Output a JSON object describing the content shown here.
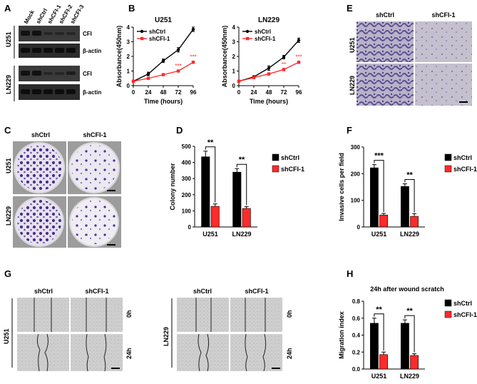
{
  "panels": {
    "A": "A",
    "B": "B",
    "C": "C",
    "D": "D",
    "E": "E",
    "F": "F",
    "G": "G",
    "H": "H"
  },
  "colors": {
    "shCtrl": "#000000",
    "shCFI": "#ff2a2a",
    "blot_bg": "#3a3a3a",
    "blot_band": "#151515",
    "dish_purple": "#5b3d9a",
    "micro_bg": "#b9b6c2"
  },
  "western_blot": {
    "lanes": [
      "Mock",
      "shCtrl",
      "shCFI-1",
      "shCFI-2",
      "shCFI-3"
    ],
    "blocks": [
      {
        "cell_line": "U251",
        "rows": [
          "CFI",
          "β-actin"
        ]
      },
      {
        "cell_line": "LN229",
        "rows": [
          "CFI",
          "β-actin"
        ]
      }
    ]
  },
  "invasion_images": {
    "cols": [
      "shCtrl",
      "shCFI-1"
    ],
    "rows": [
      "U251",
      "LN229"
    ]
  },
  "colony_images": {
    "cols": [
      "shCtrl",
      "shCFI-1"
    ],
    "rows": [
      "U251",
      "LN229"
    ]
  },
  "wound_images": {
    "left": {
      "cell_line": "U251",
      "cols": [
        "shCtrl",
        "shCFI-1"
      ],
      "times": [
        "0h",
        "24h"
      ]
    },
    "right": {
      "cell_line": "LN229",
      "cols": [
        "shCtrl",
        "shCFI-1"
      ],
      "times": [
        "0h",
        "24h"
      ]
    }
  },
  "chart_data": [
    {
      "id": "B-U251",
      "type": "line",
      "title": "U251",
      "xlabel": "Time (hours)",
      "ylabel": "Absorbance(450nm)",
      "x": [
        0,
        24,
        48,
        72,
        96
      ],
      "xlim": [
        0,
        96
      ],
      "ylim": [
        0,
        4
      ],
      "xticks": [
        "0",
        "24",
        "48",
        "72",
        "96"
      ],
      "yticks": [
        "0",
        "1",
        "2",
        "3",
        "4"
      ],
      "series": [
        {
          "name": "shCtrl",
          "values": [
            0.3,
            0.8,
            1.7,
            2.45,
            3.85
          ],
          "err": [
            0.05,
            0.12,
            0.12,
            0.15,
            0.15
          ]
        },
        {
          "name": "shCFI-1",
          "values": [
            0.3,
            0.5,
            0.75,
            1.0,
            1.6
          ],
          "err": [
            0.05,
            0.05,
            0.06,
            0.07,
            0.08
          ]
        }
      ],
      "annotations": [
        {
          "x": 72,
          "label": "***"
        },
        {
          "x": 96,
          "label": "***"
        }
      ],
      "legend": "top-left"
    },
    {
      "id": "B-LN229",
      "type": "line",
      "title": "LN229",
      "xlabel": "Time (hours)",
      "ylabel": "Absorbance(450nm)",
      "x": [
        0,
        24,
        48,
        72,
        96
      ],
      "xlim": [
        0,
        96
      ],
      "ylim": [
        0,
        4
      ],
      "xticks": [
        "0",
        "24",
        "48",
        "72",
        "96"
      ],
      "yticks": [
        "0",
        "1",
        "2",
        "3",
        "4"
      ],
      "series": [
        {
          "name": "shCtrl",
          "values": [
            0.3,
            0.6,
            1.2,
            1.95,
            3.1
          ],
          "err": [
            0.05,
            0.08,
            0.15,
            0.12,
            0.15
          ]
        },
        {
          "name": "shCFI-1",
          "values": [
            0.3,
            0.55,
            0.8,
            1.1,
            1.6
          ],
          "err": [
            0.05,
            0.05,
            0.06,
            0.08,
            0.08
          ]
        }
      ],
      "annotations": [
        {
          "x": 72,
          "label": "**"
        },
        {
          "x": 96,
          "label": "***"
        }
      ],
      "legend": "top-left"
    },
    {
      "id": "D",
      "type": "bar",
      "title": "",
      "ylabel": "Colony number",
      "categories": [
        "U251",
        "LN229"
      ],
      "ylim": [
        0,
        500
      ],
      "yticks": [
        "0",
        "100",
        "200",
        "300",
        "400",
        "500"
      ],
      "series": [
        {
          "name": "shCtrl",
          "values": [
            435,
            340
          ],
          "err": [
            35,
            22
          ]
        },
        {
          "name": "shCFI-1",
          "values": [
            128,
            115
          ],
          "err": [
            15,
            12
          ]
        }
      ],
      "significance": [
        "**",
        "**"
      ],
      "legend": "right"
    },
    {
      "id": "F",
      "type": "bar",
      "title": "",
      "ylabel": "Invasive cells per field",
      "categories": [
        "U251",
        "LN229"
      ],
      "ylim": [
        0,
        300
      ],
      "yticks": [
        "0",
        "100",
        "200",
        "300"
      ],
      "series": [
        {
          "name": "shCtrl",
          "values": [
            222,
            152
          ],
          "err": [
            12,
            10
          ]
        },
        {
          "name": "shCFI-1",
          "values": [
            45,
            40
          ],
          "err": [
            6,
            10
          ]
        }
      ],
      "significance": [
        "***",
        "**"
      ],
      "legend": "right"
    },
    {
      "id": "H",
      "type": "bar",
      "title": "24h after wound scratch",
      "ylabel": "Migration index",
      "categories": [
        "U251",
        "LN229"
      ],
      "ylim": [
        0,
        0.8
      ],
      "yticks": [
        "0.0",
        "0.2",
        "0.4",
        "0.6",
        "0.8"
      ],
      "series": [
        {
          "name": "shCtrl",
          "values": [
            0.54,
            0.54
          ],
          "err": [
            0.06,
            0.04
          ]
        },
        {
          "name": "shCFI-1",
          "values": [
            0.17,
            0.16
          ],
          "err": [
            0.03,
            0.02
          ]
        }
      ],
      "significance": [
        "**",
        "**"
      ],
      "legend": "right"
    }
  ]
}
